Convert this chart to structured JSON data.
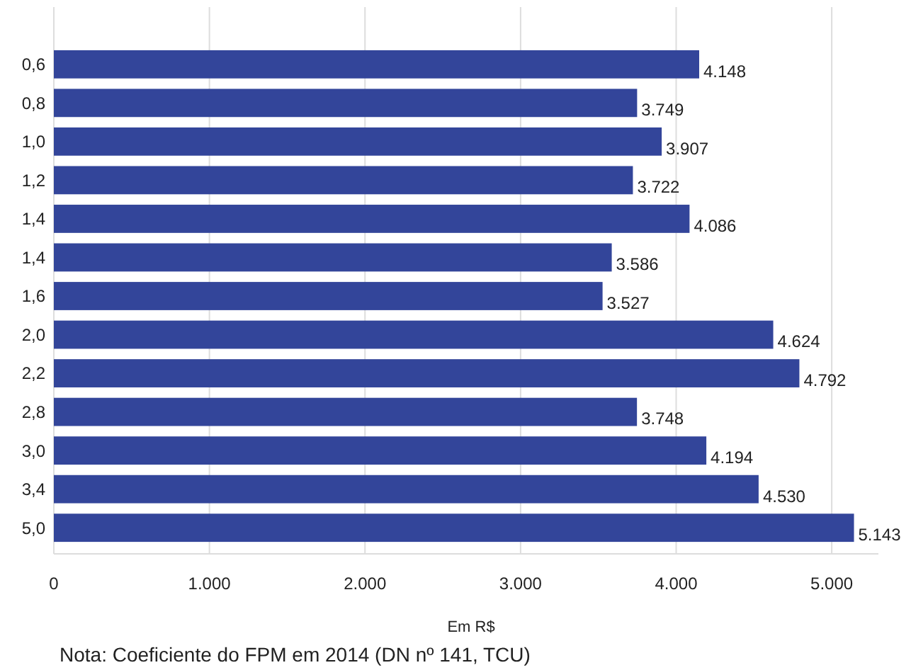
{
  "chart_data": {
    "type": "bar",
    "orientation": "horizontal",
    "categories": [
      "0,6",
      "0,8",
      "1,0",
      "1,2",
      "1,4",
      "1,4",
      "1,6",
      "2,0",
      "2,2",
      "2,8",
      "3,0",
      "3,4",
      "5,0"
    ],
    "values": [
      4148,
      3749,
      3907,
      3722,
      4086,
      3586,
      3527,
      4624,
      4792,
      3748,
      4194,
      4530,
      5143
    ],
    "value_labels": [
      "4.148",
      "3.749",
      "3.907",
      "3.722",
      "4.086",
      "3.586",
      "3.527",
      "4.624",
      "4.792",
      "3.748",
      "4.194",
      "4.530",
      "5.143"
    ],
    "color": "#33459a",
    "xlim": [
      0,
      5300
    ],
    "xticks": [
      {
        "value": 0,
        "label": "0"
      },
      {
        "value": 1000,
        "label": "1.000"
      },
      {
        "value": 2000,
        "label": "2.000"
      },
      {
        "value": 3000,
        "label": "3.000"
      },
      {
        "value": 4000,
        "label": "4.000"
      },
      {
        "value": 5000,
        "label": "5.000"
      }
    ],
    "grid": "x",
    "xlabel": "Em R$",
    "annotations": [
      "Nota: Coeficiente do FPM em 2014 (DN nº 141, TCU)"
    ]
  }
}
